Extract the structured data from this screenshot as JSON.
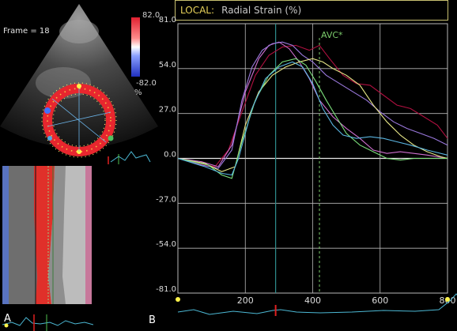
{
  "echo": {
    "frame_label": "Frame = 18",
    "colorbar_max": "82.0",
    "colorbar_min": "-82.0",
    "colorbar_unit": "%"
  },
  "panel_labels": {
    "left": "A",
    "right": "B"
  },
  "chart_header": {
    "prefix": "LOCAL:",
    "title": "Radial Strain (%)"
  },
  "chart_data": {
    "type": "line",
    "title": "Radial Strain (%)",
    "xlim": [
      0,
      800
    ],
    "ylim": [
      -81,
      81
    ],
    "x_ticks": [
      "200",
      "400",
      "600",
      "800"
    ],
    "y_ticks": [
      "81.0",
      "54.0",
      "27.0",
      "0.0",
      "-27.0",
      "-54.0",
      "-81.0"
    ],
    "annotations": [
      {
        "label": "AVC*",
        "x": 420
      }
    ],
    "vertical_markers": [
      {
        "x": 290,
        "color": "#2e8c8c"
      }
    ],
    "colors": {
      "grid": "#b8b8b8",
      "avc": "#7ccc6c",
      "axis_text": "#dcdcdc",
      "header_prefix": "#e8d25a",
      "header_title": "#c8c8c8",
      "frame": "#c8c070"
    },
    "series": [
      {
        "color": "#b01040",
        "points": [
          [
            0,
            0
          ],
          [
            60,
            -3
          ],
          [
            110,
            -5
          ],
          [
            150,
            5
          ],
          [
            190,
            28
          ],
          [
            230,
            50
          ],
          [
            270,
            62
          ],
          [
            310,
            67
          ],
          [
            350,
            68
          ],
          [
            390,
            65
          ],
          [
            420,
            68
          ],
          [
            450,
            60
          ],
          [
            490,
            50
          ],
          [
            530,
            45
          ],
          [
            570,
            44
          ],
          [
            610,
            38
          ],
          [
            650,
            32
          ],
          [
            690,
            30
          ],
          [
            730,
            25
          ],
          [
            770,
            20
          ],
          [
            800,
            12
          ]
        ]
      },
      {
        "color": "#d070d0",
        "points": [
          [
            0,
            0
          ],
          [
            70,
            -2
          ],
          [
            120,
            -5
          ],
          [
            160,
            8
          ],
          [
            200,
            40
          ],
          [
            240,
            60
          ],
          [
            270,
            68
          ],
          [
            300,
            70
          ],
          [
            330,
            66
          ],
          [
            360,
            58
          ],
          [
            390,
            48
          ],
          [
            420,
            35
          ],
          [
            460,
            25
          ],
          [
            500,
            18
          ],
          [
            540,
            12
          ],
          [
            580,
            5
          ],
          [
            620,
            3
          ],
          [
            660,
            4
          ],
          [
            700,
            3
          ],
          [
            740,
            2
          ],
          [
            800,
            0
          ]
        ]
      },
      {
        "color": "#9a78dc",
        "points": [
          [
            0,
            0
          ],
          [
            70,
            -4
          ],
          [
            120,
            -6
          ],
          [
            160,
            5
          ],
          [
            190,
            35
          ],
          [
            220,
            55
          ],
          [
            250,
            65
          ],
          [
            280,
            69
          ],
          [
            310,
            70
          ],
          [
            340,
            68
          ],
          [
            370,
            62
          ],
          [
            400,
            58
          ],
          [
            440,
            50
          ],
          [
            480,
            45
          ],
          [
            520,
            40
          ],
          [
            560,
            35
          ],
          [
            600,
            28
          ],
          [
            640,
            22
          ],
          [
            680,
            18
          ],
          [
            720,
            15
          ],
          [
            760,
            12
          ],
          [
            800,
            8
          ]
        ]
      },
      {
        "color": "#e8e888",
        "points": [
          [
            0,
            0
          ],
          [
            80,
            -3
          ],
          [
            130,
            -8
          ],
          [
            170,
            -5
          ],
          [
            200,
            20
          ],
          [
            240,
            40
          ],
          [
            280,
            50
          ],
          [
            320,
            55
          ],
          [
            360,
            58
          ],
          [
            400,
            60
          ],
          [
            430,
            58
          ],
          [
            460,
            54
          ],
          [
            500,
            50
          ],
          [
            540,
            44
          ],
          [
            580,
            32
          ],
          [
            620,
            22
          ],
          [
            660,
            14
          ],
          [
            700,
            8
          ],
          [
            740,
            4
          ],
          [
            780,
            1
          ],
          [
            800,
            0
          ]
        ]
      },
      {
        "color": "#7ce07c",
        "points": [
          [
            0,
            0
          ],
          [
            90,
            -4
          ],
          [
            130,
            -10
          ],
          [
            160,
            -12
          ],
          [
            190,
            10
          ],
          [
            230,
            35
          ],
          [
            270,
            50
          ],
          [
            310,
            58
          ],
          [
            350,
            60
          ],
          [
            380,
            56
          ],
          [
            410,
            46
          ],
          [
            440,
            35
          ],
          [
            470,
            25
          ],
          [
            500,
            15
          ],
          [
            540,
            8
          ],
          [
            580,
            4
          ],
          [
            620,
            0
          ],
          [
            660,
            -1
          ],
          [
            700,
            0
          ],
          [
            760,
            0
          ],
          [
            800,
            0
          ]
        ]
      },
      {
        "color": "#5ab4e0",
        "points": [
          [
            0,
            0
          ],
          [
            80,
            -5
          ],
          [
            130,
            -9
          ],
          [
            160,
            -10
          ],
          [
            180,
            0
          ],
          [
            220,
            30
          ],
          [
            260,
            48
          ],
          [
            300,
            55
          ],
          [
            340,
            58
          ],
          [
            370,
            55
          ],
          [
            400,
            45
          ],
          [
            430,
            30
          ],
          [
            460,
            20
          ],
          [
            490,
            14
          ],
          [
            530,
            12
          ],
          [
            570,
            13
          ],
          [
            610,
            12
          ],
          [
            650,
            10
          ],
          [
            690,
            8
          ],
          [
            740,
            5
          ],
          [
            800,
            2
          ]
        ]
      }
    ]
  }
}
